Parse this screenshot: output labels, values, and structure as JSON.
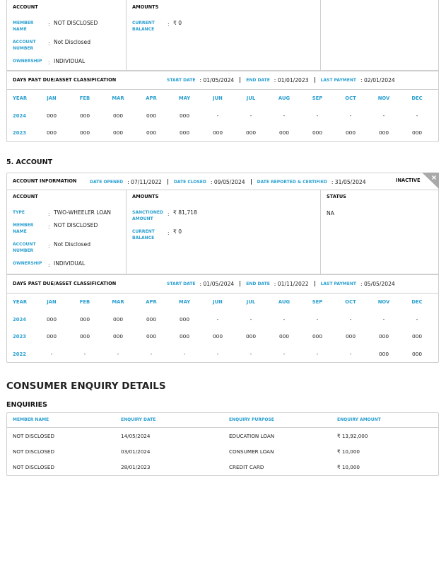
{
  "account_prev": {
    "account": {
      "heading": "ACCOUNT",
      "fields": [
        {
          "label": "MEMBER NAME",
          "value": "NOT DISCLOSED"
        },
        {
          "label": "ACCOUNT NUMBER",
          "value": "Not Disclosed"
        },
        {
          "label": "OWNERSHIP",
          "value": "INDIVIDUAL"
        }
      ]
    },
    "amounts": {
      "heading": "AMOUNTS",
      "fields": [
        {
          "label": "CURRENT BALANCE",
          "value": "₹ 0"
        }
      ]
    },
    "dpd": {
      "heading": "DAYS PAST DUE/ASSET CLASSIFICATION",
      "dates": [
        {
          "label": "START DATE",
          "value": "01/05/2024"
        },
        {
          "label": "END DATE",
          "value": "01/01/2023"
        },
        {
          "label": "LAST PAYMENT",
          "value": "02/01/2024"
        }
      ],
      "columns": [
        "YEAR",
        "JAN",
        "FEB",
        "MAR",
        "APR",
        "MAY",
        "JUN",
        "JUL",
        "AUG",
        "SEP",
        "OCT",
        "NOV",
        "DEC"
      ],
      "rows": [
        [
          "2024",
          "000",
          "000",
          "000",
          "000",
          "000",
          "-",
          "-",
          "-",
          "-",
          "-",
          "-",
          "-"
        ],
        [
          "2023",
          "000",
          "000",
          "000",
          "000",
          "000",
          "000",
          "000",
          "000",
          "000",
          "000",
          "000",
          "000"
        ]
      ]
    }
  },
  "account_5": {
    "title": "5. ACCOUNT",
    "info": {
      "heading": "ACCOUNT INFORMATION",
      "dates": [
        {
          "label": "DATE OPENED",
          "value": "07/11/2022"
        },
        {
          "label": "DATE CLOSED",
          "value": "09/05/2024"
        },
        {
          "label": "DATE REPORTED & CERTIFIED",
          "value": "31/05/2024"
        }
      ],
      "state": "INACTIVE"
    },
    "account": {
      "heading": "ACCOUNT",
      "fields": [
        {
          "label": "TYPE",
          "value": "TWO-WHEELER LOAN"
        },
        {
          "label": "MEMBER NAME",
          "value": "NOT DISCLOSED"
        },
        {
          "label": "ACCOUNT NUMBER",
          "value": "Not Disclosed"
        },
        {
          "label": "OWNERSHIP",
          "value": "INDIVIDUAL"
        }
      ]
    },
    "amounts": {
      "heading": "AMOUNTS",
      "fields": [
        {
          "label": "SANCTIONED AMOUNT",
          "value": "₹ 81,718"
        },
        {
          "label": "CURRENT BALANCE",
          "value": "₹ 0"
        }
      ]
    },
    "status": {
      "heading": "STATUS",
      "value": "NA"
    },
    "dpd": {
      "heading": "DAYS PAST DUE/ASSET CLASSIFICATION",
      "dates": [
        {
          "label": "START DATE",
          "value": "01/05/2024"
        },
        {
          "label": "END DATE",
          "value": "01/11/2022"
        },
        {
          "label": "LAST PAYMENT",
          "value": "05/05/2024"
        }
      ],
      "columns": [
        "YEAR",
        "JAN",
        "FEB",
        "MAR",
        "APR",
        "MAY",
        "JUN",
        "JUL",
        "AUG",
        "SEP",
        "OCT",
        "NOV",
        "DEC"
      ],
      "rows": [
        [
          "2024",
          "000",
          "000",
          "000",
          "000",
          "000",
          "-",
          "-",
          "-",
          "-",
          "-",
          "-",
          "-"
        ],
        [
          "2023",
          "000",
          "000",
          "000",
          "000",
          "000",
          "000",
          "000",
          "000",
          "000",
          "000",
          "000",
          "000"
        ],
        [
          "2022",
          "-",
          "-",
          "-",
          "-",
          "-",
          "-",
          "-",
          "-",
          "-",
          "-",
          "000",
          "000"
        ]
      ]
    }
  },
  "enquiry": {
    "title": "CONSUMER ENQUIRY DETAILS",
    "subtitle": "ENQUIRIES",
    "columns": [
      "MEMBER NAME",
      "ENQUIRY DATE",
      "ENQUIRY PURPOSE",
      "ENQUIRY AMOUNT"
    ],
    "rows": [
      [
        "NOT DISCLOSED",
        "14/05/2024",
        "EDUCATION LOAN",
        "₹ 13,92,000"
      ],
      [
        "NOT DISCLOSED",
        "03/01/2024",
        "CONSUMER LOAN",
        "₹ 10,000"
      ],
      [
        "NOT DISCLOSED",
        "28/01/2023",
        "CREDIT CARD",
        "₹ 10,000"
      ]
    ]
  }
}
